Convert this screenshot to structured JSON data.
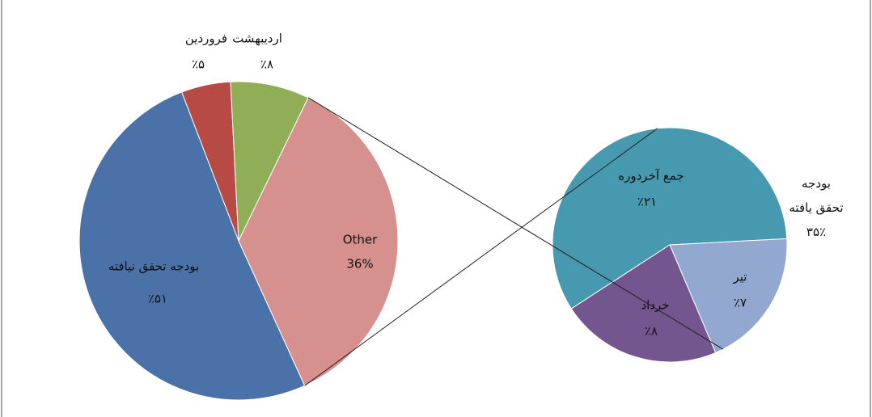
{
  "chart_data": [
    {
      "type": "pie",
      "categories": [
        "بودجه تحقق نیافته",
        "فروردین",
        "اردیبهشت",
        "Other"
      ],
      "values": [
        51,
        5,
        8,
        36
      ],
      "value_labels": [
        "٪۵۱",
        "٪۵",
        "٪۸",
        "36%"
      ],
      "colors": [
        "#4a72a8",
        "#b84a45",
        "#8fae56",
        "#d6908e"
      ]
    },
    {
      "type": "pie",
      "categories": [
        "جمع آخردوره",
        "تیر",
        "خرداد"
      ],
      "values": [
        21,
        7,
        8
      ],
      "value_labels": [
        "٪۲۱",
        "٪۷",
        "٪۸"
      ],
      "colors": [
        "#4699ae",
        "#92a8d0",
        "#73558f"
      ],
      "annotation": "بودجه تحقق یافته ٪۳۵"
    }
  ]
}
